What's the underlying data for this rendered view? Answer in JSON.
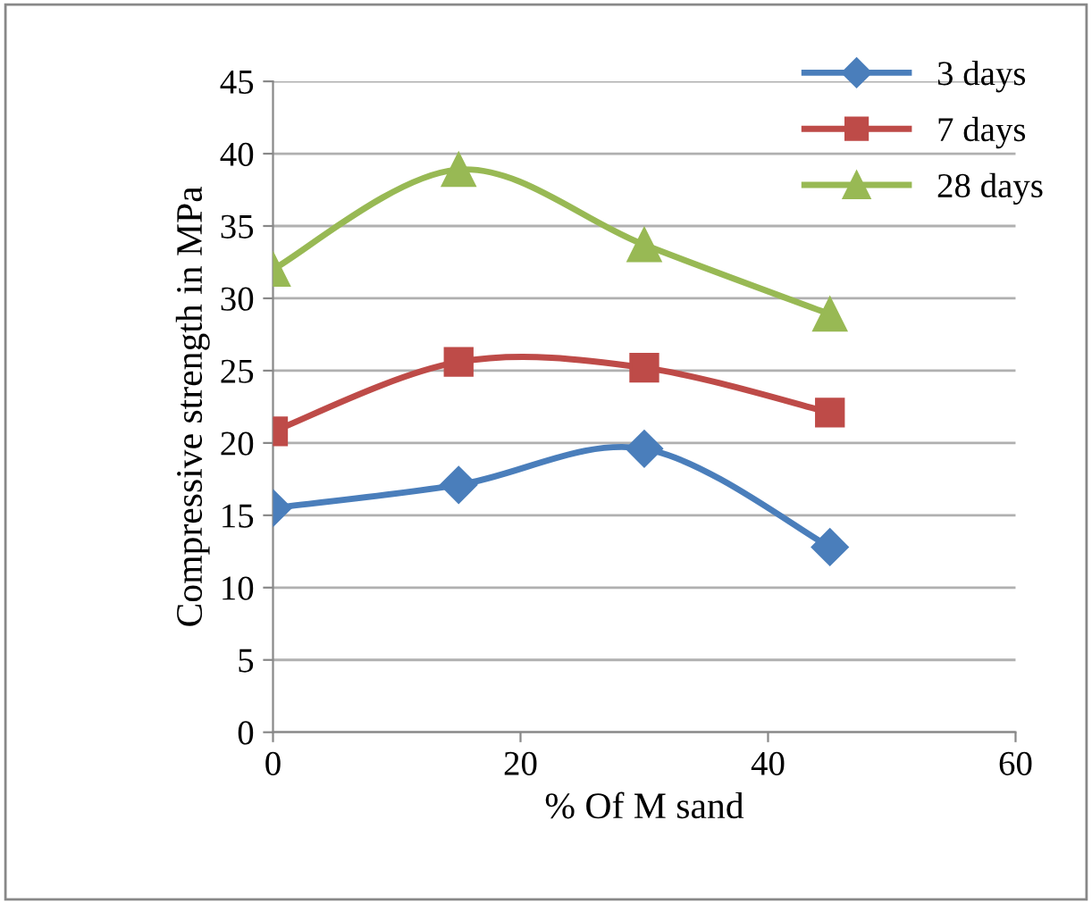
{
  "chart_data": {
    "type": "line",
    "xlabel": "% Of M sand",
    "ylabel": "Compressive strength in MPa",
    "x": [
      0,
      15,
      30,
      45
    ],
    "series": [
      {
        "name": "3 days",
        "color": "#4a7ebb",
        "marker": "diamond",
        "values": [
          15.5,
          17.1,
          19.6,
          12.8
        ]
      },
      {
        "name": "7 days",
        "color": "#be4b48",
        "marker": "square",
        "values": [
          20.8,
          25.6,
          25.2,
          22.1
        ]
      },
      {
        "name": "28 days",
        "color": "#98b954",
        "marker": "triangle",
        "values": [
          32,
          38.9,
          33.7,
          28.9
        ]
      }
    ],
    "xlim": [
      0,
      60
    ],
    "xticks": [
      0,
      20,
      40,
      60
    ],
    "ylim": [
      0,
      45
    ],
    "yticks": [
      0,
      5,
      10,
      15,
      20,
      25,
      30,
      35,
      40,
      45
    ],
    "grid": "y",
    "legend": "top right",
    "line_style": "solid"
  }
}
